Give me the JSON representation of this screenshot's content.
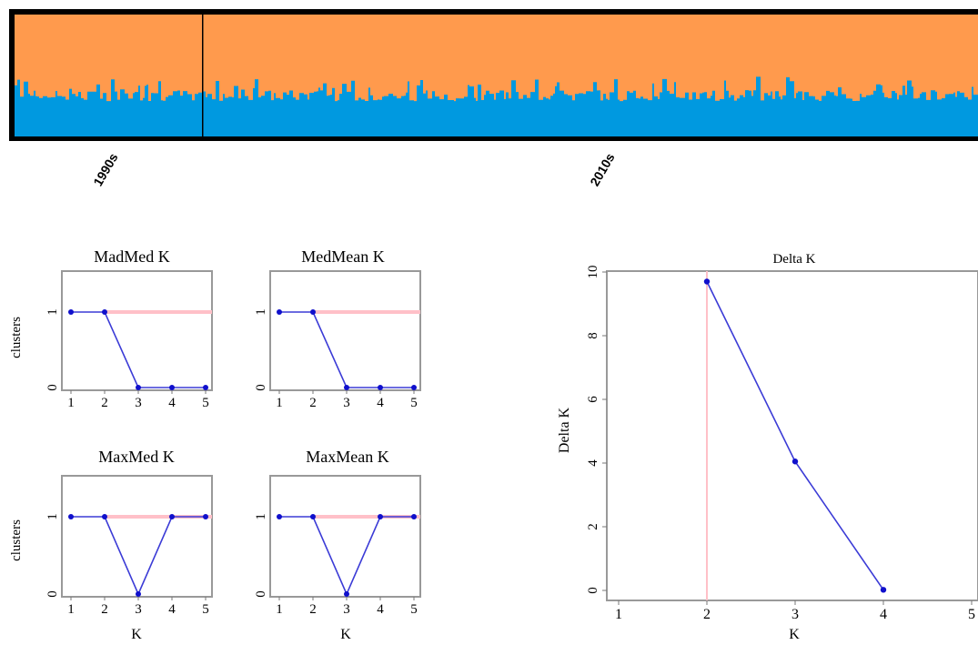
{
  "chart_data": [
    {
      "type": "bar",
      "subtype": "stacked-structure-barplot",
      "series": [
        {
          "name": "",
          "color": "#0099e0"
        },
        {
          "name": "",
          "color": "#ff9a4d"
        }
      ],
      "group_labels": [
        "1990s",
        "2010s"
      ],
      "ylim": [
        0,
        1
      ]
    },
    {
      "type": "line",
      "title": "MadMed K",
      "xlabel": "",
      "ylabel": "clusters",
      "x": [
        1,
        2,
        3,
        4,
        5
      ],
      "y": [
        1,
        1,
        0,
        0,
        0
      ],
      "reference_y": 1,
      "xlim": [
        1,
        5
      ],
      "ylim": [
        0,
        1
      ]
    },
    {
      "type": "line",
      "title": "MedMean K",
      "xlabel": "",
      "ylabel": "",
      "x": [
        1,
        2,
        3,
        4,
        5
      ],
      "y": [
        1,
        1,
        0,
        0,
        0
      ],
      "reference_y": 1,
      "xlim": [
        1,
        5
      ],
      "ylim": [
        0,
        1
      ]
    },
    {
      "type": "line",
      "title": "MaxMed K",
      "xlabel": "K",
      "ylabel": "clusters",
      "x": [
        1,
        2,
        3,
        4,
        5
      ],
      "y": [
        1,
        1,
        0,
        1,
        1
      ],
      "reference_y": 1,
      "xlim": [
        1,
        5
      ],
      "ylim": [
        0,
        1
      ]
    },
    {
      "type": "line",
      "title": "MaxMean K",
      "xlabel": "K",
      "ylabel": "",
      "x": [
        1,
        2,
        3,
        4,
        5
      ],
      "y": [
        1,
        1,
        0,
        1,
        1
      ],
      "reference_y": 1,
      "xlim": [
        1,
        5
      ],
      "ylim": [
        0,
        1
      ]
    },
    {
      "type": "line",
      "title": "Delta K",
      "xlabel": "K",
      "ylabel": "Delta K",
      "x": [
        2,
        3,
        4
      ],
      "y": [
        9.7,
        4.05,
        0.02
      ],
      "reference_x": 2,
      "xticks": [
        1,
        2,
        3,
        4,
        5
      ],
      "yticks": [
        0,
        2,
        4,
        6,
        8,
        10
      ],
      "xlim": [
        1,
        5
      ],
      "ylim": [
        0,
        10
      ]
    }
  ],
  "colors": {
    "line": "#3b3bd6",
    "point": "#1010cc",
    "reference": "#ffc0c8",
    "frame": "#999999"
  }
}
